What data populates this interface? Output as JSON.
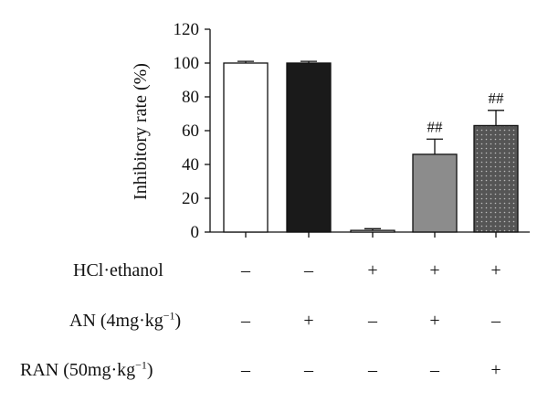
{
  "chart_data": {
    "type": "bar",
    "ylabel": "Inhibitory rate (%)",
    "ylim": [
      0,
      120
    ],
    "yticks": [
      0,
      20,
      40,
      60,
      80,
      100,
      120
    ],
    "grid": false,
    "values": [
      100,
      100,
      1,
      46,
      63
    ],
    "errors": [
      1,
      1,
      1,
      9,
      9
    ],
    "significance": [
      "",
      "",
      "",
      "##",
      "##"
    ],
    "fills": [
      "#ffffff",
      "#1a1a1a",
      "#ffffff",
      "#8c8c8c",
      "#555555"
    ],
    "patterns": [
      "none",
      "none",
      "none",
      "none",
      "dots"
    ]
  },
  "conditions": [
    {
      "label": "HCl·ethanol",
      "marks": [
        "–",
        "–",
        "+",
        "+",
        "+"
      ]
    },
    {
      "label": "AN (4",
      "unit": "mg·kg",
      "exp": "−1",
      "tail": ")",
      "marks": [
        "–",
        "+",
        "–",
        "+",
        "–"
      ]
    },
    {
      "label": "RAN (50",
      "unit": "mg·kg",
      "exp": "−1",
      "tail": ")",
      "marks": [
        "–",
        "–",
        "–",
        "–",
        "+"
      ]
    }
  ]
}
